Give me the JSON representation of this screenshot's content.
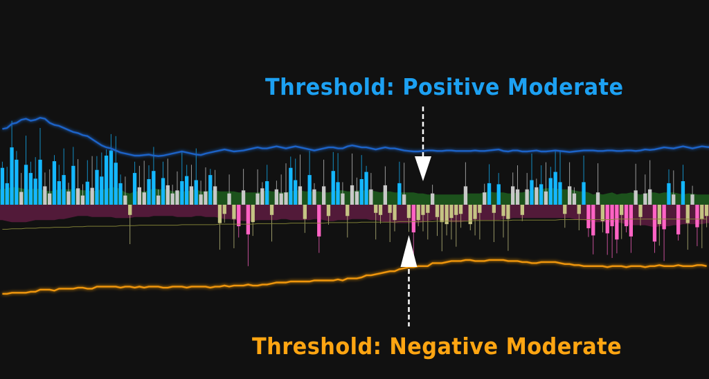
{
  "annotations": {
    "positive_label": "Threshold: Positive Moderate",
    "negative_label": "Threshold: Negative Moderate"
  },
  "colors": {
    "background": "#111111",
    "strong_up": "#14b7ff",
    "mild_up": "#c8c8c8",
    "strong_down": "#ff63c4",
    "mild_down": "#c5c483",
    "positive_band": "#1e5a1e",
    "negative_band": "#5a1c3e",
    "positive_threshold": "#1e64c8",
    "negative_threshold": "#f0960a",
    "signal_line": "#8a8a3a",
    "arrow": "#ffffff"
  },
  "chart_data": {
    "type": "bar",
    "ylim": [
      -1.8,
      1.8
    ],
    "grid": false,
    "legend": "none",
    "bar_count": 150,
    "series": [
      {
        "kind": "histogram",
        "values": [
          0.72,
          0.42,
          1.12,
          0.88,
          0.25,
          0.78,
          0.62,
          0.51,
          0.88,
          0.36,
          0.22,
          0.85,
          0.46,
          0.58,
          0.26,
          0.76,
          0.32,
          0.18,
          0.45,
          0.33,
          0.68,
          0.55,
          0.96,
          1.06,
          0.82,
          0.42,
          0.18,
          -0.2,
          0.62,
          0.34,
          0.24,
          0.5,
          0.66,
          0.18,
          0.52,
          0.38,
          0.22,
          0.28,
          0.46,
          0.56,
          0.36,
          0.48,
          0.2,
          0.26,
          0.58,
          0.36,
          -0.36,
          -0.18,
          0.22,
          -0.28,
          -0.42,
          0.28,
          -0.58,
          -0.34,
          0.22,
          0.32,
          0.46,
          -0.2,
          0.3,
          0.22,
          0.24,
          0.72,
          0.48,
          0.36,
          -0.28,
          0.58,
          0.3,
          -0.62,
          0.36,
          -0.22,
          0.66,
          0.44,
          0.22,
          -0.22,
          0.38,
          0.26,
          0.5,
          0.64,
          0.3,
          -0.16,
          -0.2,
          0.38,
          -0.16,
          -0.3,
          0.42,
          0.2,
          -0.26,
          -0.54,
          -0.3,
          -0.2,
          -0.16,
          0.22,
          -0.24,
          -0.34,
          -0.38,
          -0.26,
          -0.2,
          -0.18,
          0.36,
          -0.38,
          -0.28,
          -0.16,
          0.24,
          0.42,
          -0.16,
          0.4,
          -0.22,
          -0.28,
          0.36,
          0.3,
          -0.2,
          0.3,
          0.48,
          0.34,
          0.4,
          0.26,
          0.52,
          0.64,
          0.44,
          -0.18,
          0.36,
          0.22,
          -0.18,
          0.44,
          -0.46,
          -0.6,
          0.24,
          -0.32,
          -0.56,
          -0.42,
          -0.68,
          -0.2,
          -0.42,
          -0.62,
          0.28,
          -0.24,
          0.22,
          0.3,
          -0.72,
          -0.38,
          -0.48,
          0.42,
          0.2,
          -0.58,
          0.46,
          -0.36,
          0.2,
          -0.44,
          -0.28,
          -0.22
        ]
      },
      {
        "kind": "positive-threshold",
        "values": [
          1.48,
          1.5,
          1.58,
          1.6,
          1.66,
          1.68,
          1.64,
          1.66,
          1.7,
          1.68,
          1.6,
          1.56,
          1.54,
          1.5,
          1.46,
          1.42,
          1.4,
          1.36,
          1.34,
          1.28,
          1.22,
          1.16,
          1.12,
          1.1,
          1.06,
          1.02,
          1.0,
          0.98,
          0.96,
          0.96,
          0.97,
          0.98,
          0.96,
          0.95,
          0.96,
          0.98,
          1.0,
          1.02,
          1.04,
          1.02,
          1.0,
          0.98,
          0.97,
          1.0,
          1.02,
          1.04,
          1.06,
          1.08,
          1.06,
          1.04,
          1.05,
          1.06,
          1.08,
          1.1,
          1.12,
          1.1,
          1.1,
          1.12,
          1.14,
          1.12,
          1.1,
          1.12,
          1.14,
          1.12,
          1.1,
          1.08,
          1.06,
          1.08,
          1.1,
          1.12,
          1.12,
          1.1,
          1.1,
          1.14,
          1.16,
          1.14,
          1.12,
          1.12,
          1.1,
          1.08,
          1.1,
          1.12,
          1.1,
          1.1,
          1.08,
          1.06,
          1.05,
          1.04,
          1.04,
          1.05,
          1.06,
          1.06,
          1.05,
          1.05,
          1.06,
          1.06,
          1.05,
          1.05,
          1.05,
          1.05,
          1.06,
          1.05,
          1.05,
          1.06,
          1.07,
          1.08,
          1.05,
          1.04,
          1.06,
          1.06,
          1.04,
          1.04,
          1.05,
          1.06,
          1.04,
          1.04,
          1.05,
          1.06,
          1.05,
          1.04,
          1.03,
          1.04,
          1.05,
          1.06,
          1.06,
          1.06,
          1.05,
          1.05,
          1.06,
          1.06,
          1.05,
          1.05,
          1.06,
          1.06,
          1.05,
          1.06,
          1.08,
          1.07,
          1.08,
          1.1,
          1.12,
          1.11,
          1.1,
          1.12,
          1.14,
          1.12,
          1.1,
          1.12,
          1.14,
          1.13,
          1.12,
          1.14
        ]
      },
      {
        "kind": "negative-threshold",
        "values": [
          -1.74,
          -1.74,
          -1.72,
          -1.72,
          -1.72,
          -1.72,
          -1.7,
          -1.7,
          -1.66,
          -1.66,
          -1.66,
          -1.68,
          -1.64,
          -1.64,
          -1.64,
          -1.64,
          -1.62,
          -1.62,
          -1.64,
          -1.64,
          -1.6,
          -1.6,
          -1.6,
          -1.6,
          -1.6,
          -1.62,
          -1.6,
          -1.6,
          -1.62,
          -1.6,
          -1.62,
          -1.6,
          -1.6,
          -1.6,
          -1.62,
          -1.62,
          -1.6,
          -1.6,
          -1.6,
          -1.62,
          -1.6,
          -1.6,
          -1.6,
          -1.6,
          -1.62,
          -1.6,
          -1.6,
          -1.58,
          -1.6,
          -1.58,
          -1.58,
          -1.58,
          -1.56,
          -1.58,
          -1.58,
          -1.56,
          -1.56,
          -1.54,
          -1.52,
          -1.52,
          -1.52,
          -1.5,
          -1.5,
          -1.5,
          -1.5,
          -1.5,
          -1.48,
          -1.48,
          -1.48,
          -1.48,
          -1.48,
          -1.46,
          -1.48,
          -1.44,
          -1.44,
          -1.44,
          -1.42,
          -1.38,
          -1.38,
          -1.36,
          -1.34,
          -1.32,
          -1.3,
          -1.3,
          -1.26,
          -1.24,
          -1.22,
          -1.22,
          -1.2,
          -1.2,
          -1.2,
          -1.14,
          -1.14,
          -1.14,
          -1.12,
          -1.1,
          -1.1,
          -1.1,
          -1.08,
          -1.08,
          -1.1,
          -1.1,
          -1.1,
          -1.08,
          -1.08,
          -1.08,
          -1.08,
          -1.1,
          -1.1,
          -1.1,
          -1.12,
          -1.12,
          -1.14,
          -1.14,
          -1.12,
          -1.12,
          -1.12,
          -1.12,
          -1.14,
          -1.16,
          -1.16,
          -1.18,
          -1.18,
          -1.2,
          -1.2,
          -1.2,
          -1.2,
          -1.2,
          -1.22,
          -1.2,
          -1.2,
          -1.2,
          -1.22,
          -1.2,
          -1.2,
          -1.2,
          -1.22,
          -1.2,
          -1.2,
          -1.18,
          -1.2,
          -1.2,
          -1.2,
          -1.18,
          -1.2,
          -1.2,
          -1.2,
          -1.18,
          -1.18,
          -1.2
        ]
      },
      {
        "kind": "positive-band",
        "values": [
          0.3,
          0.32,
          0.34,
          0.34,
          0.32,
          0.3,
          0.3,
          0.32,
          0.3,
          0.28,
          0.26,
          0.28,
          0.3,
          0.3,
          0.3,
          0.3,
          0.3,
          0.28,
          0.28,
          0.26,
          0.28,
          0.3,
          0.3,
          0.34,
          0.34,
          0.3,
          0.24,
          0.22,
          0.26,
          0.26,
          0.26,
          0.28,
          0.32,
          0.3,
          0.3,
          0.3,
          0.26,
          0.26,
          0.26,
          0.26,
          0.28,
          0.3,
          0.26,
          0.26,
          0.28,
          0.28,
          0.26,
          0.26,
          0.26,
          0.26,
          0.24,
          0.24,
          0.24,
          0.24,
          0.24,
          0.26,
          0.28,
          0.26,
          0.26,
          0.24,
          0.24,
          0.26,
          0.28,
          0.28,
          0.26,
          0.26,
          0.26,
          0.26,
          0.24,
          0.24,
          0.26,
          0.28,
          0.28,
          0.26,
          0.26,
          0.28,
          0.28,
          0.28,
          0.28,
          0.26,
          0.24,
          0.26,
          0.26,
          0.24,
          0.24,
          0.24,
          0.24,
          0.24,
          0.22,
          0.22,
          0.2,
          0.2,
          0.2,
          0.2,
          0.2,
          0.2,
          0.2,
          0.2,
          0.22,
          0.22,
          0.22,
          0.22,
          0.24,
          0.26,
          0.24,
          0.24,
          0.24,
          0.22,
          0.22,
          0.24,
          0.24,
          0.26,
          0.28,
          0.3,
          0.3,
          0.32,
          0.32,
          0.32,
          0.3,
          0.3,
          0.3,
          0.28,
          0.26,
          0.26,
          0.24,
          0.2,
          0.22,
          0.2,
          0.22,
          0.24,
          0.2,
          0.22,
          0.22,
          0.24,
          0.22,
          0.2,
          0.22,
          0.24,
          0.24,
          0.22,
          0.24,
          0.24,
          0.24,
          0.22,
          0.2,
          0.22,
          0.22,
          0.2,
          0.2,
          0.2
        ]
      },
      {
        "kind": "negative-band",
        "values": [
          -0.3,
          -0.32,
          -0.34,
          -0.34,
          -0.34,
          -0.34,
          -0.32,
          -0.3,
          -0.3,
          -0.3,
          -0.3,
          -0.3,
          -0.28,
          -0.28,
          -0.26,
          -0.24,
          -0.22,
          -0.22,
          -0.22,
          -0.24,
          -0.24,
          -0.24,
          -0.24,
          -0.24,
          -0.26,
          -0.26,
          -0.26,
          -0.26,
          -0.24,
          -0.24,
          -0.24,
          -0.24,
          -0.22,
          -0.22,
          -0.22,
          -0.22,
          -0.22,
          -0.24,
          -0.24,
          -0.24,
          -0.24,
          -0.22,
          -0.22,
          -0.24,
          -0.24,
          -0.24,
          -0.26,
          -0.28,
          -0.28,
          -0.3,
          -0.3,
          -0.32,
          -0.32,
          -0.32,
          -0.3,
          -0.3,
          -0.3,
          -0.3,
          -0.3,
          -0.28,
          -0.28,
          -0.3,
          -0.3,
          -0.3,
          -0.3,
          -0.3,
          -0.28,
          -0.28,
          -0.3,
          -0.32,
          -0.32,
          -0.3,
          -0.3,
          -0.3,
          -0.28,
          -0.28,
          -0.28,
          -0.28,
          -0.3,
          -0.3,
          -0.32,
          -0.34,
          -0.34,
          -0.36,
          -0.36,
          -0.36,
          -0.36,
          -0.36,
          -0.36,
          -0.34,
          -0.32,
          -0.3,
          -0.3,
          -0.3,
          -0.32,
          -0.34,
          -0.34,
          -0.34,
          -0.32,
          -0.3,
          -0.3,
          -0.3,
          -0.3,
          -0.3,
          -0.3,
          -0.3,
          -0.28,
          -0.28,
          -0.26,
          -0.26,
          -0.26,
          -0.26,
          -0.26,
          -0.26,
          -0.26,
          -0.26,
          -0.26,
          -0.26,
          -0.26,
          -0.26,
          -0.26,
          -0.28,
          -0.3,
          -0.3,
          -0.32,
          -0.34,
          -0.34,
          -0.34,
          -0.34,
          -0.34,
          -0.34,
          -0.36,
          -0.38,
          -0.4,
          -0.4,
          -0.4,
          -0.4,
          -0.42,
          -0.44,
          -0.42,
          -0.42,
          -0.42,
          -0.4,
          -0.4,
          -0.38,
          -0.38,
          -0.38,
          -0.38,
          -0.38,
          -0.36
        ]
      },
      {
        "kind": "signal-line",
        "values": [
          -0.48,
          -0.48,
          -0.47,
          -0.47,
          -0.47,
          -0.46,
          -0.46,
          -0.46,
          -0.45,
          -0.45,
          -0.45,
          -0.44,
          -0.44,
          -0.44,
          -0.44,
          -0.43,
          -0.43,
          -0.43,
          -0.42,
          -0.42,
          -0.42,
          -0.42,
          -0.42,
          -0.42,
          -0.42,
          -0.41,
          -0.41,
          -0.41,
          -0.41,
          -0.4,
          -0.4,
          -0.4,
          -0.4,
          -0.4,
          -0.4,
          -0.4,
          -0.4,
          -0.4,
          -0.39,
          -0.39,
          -0.39,
          -0.39,
          -0.39,
          -0.39,
          -0.39,
          -0.39,
          -0.38,
          -0.38,
          -0.38,
          -0.38,
          -0.38,
          -0.38,
          -0.38,
          -0.38,
          -0.37,
          -0.37,
          -0.37,
          -0.37,
          -0.37,
          -0.37,
          -0.37,
          -0.36,
          -0.36,
          -0.36,
          -0.36,
          -0.36,
          -0.36,
          -0.36,
          -0.36,
          -0.35,
          -0.35,
          -0.35,
          -0.35,
          -0.35,
          -0.35,
          -0.35,
          -0.34,
          -0.34,
          -0.34,
          -0.34,
          -0.34,
          -0.34,
          -0.34,
          -0.34,
          -0.33,
          -0.33,
          -0.33,
          -0.33,
          -0.33,
          -0.33,
          -0.33,
          -0.33,
          -0.32,
          -0.32,
          -0.32,
          -0.32,
          -0.32,
          -0.32,
          -0.32,
          -0.32,
          -0.31,
          -0.31,
          -0.31,
          -0.31,
          -0.31,
          -0.31,
          -0.31,
          -0.31,
          -0.3,
          -0.3,
          -0.3,
          -0.3,
          -0.3,
          -0.3,
          -0.3,
          -0.3,
          -0.3,
          -0.3,
          -0.29,
          -0.29,
          -0.29,
          -0.29,
          -0.29,
          -0.29,
          -0.29,
          -0.29,
          -0.29,
          -0.29,
          -0.29,
          -0.29,
          -0.28,
          -0.28,
          -0.28,
          -0.28,
          -0.28,
          -0.28,
          -0.28,
          -0.28,
          -0.28,
          -0.28,
          -0.28,
          -0.28,
          -0.28,
          -0.28,
          -0.28,
          -0.28,
          -0.28,
          -0.28,
          -0.28,
          -0.28
        ]
      }
    ],
    "arrow_pointers": [
      {
        "name": "",
        "target": "positive-threshold",
        "bar_index": 89
      },
      {
        "name": "",
        "target": "negative-threshold",
        "bar_index": 86
      }
    ]
  }
}
